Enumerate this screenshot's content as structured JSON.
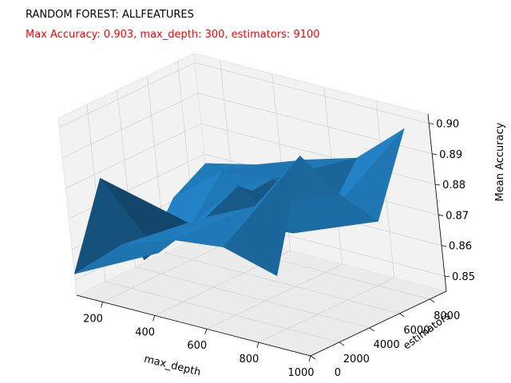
{
  "chart_data": {
    "type": "surface3d",
    "title": "RANDOM FOREST: ALLFEATURES",
    "subtitle": "Max Accuracy: 0.903, max_depth: 300, estimators: 9100",
    "subtitle_color": "#ff0000",
    "surface_color": "#1f77b4",
    "xlabel": "max_depth",
    "ylabel": "estimators",
    "zlabel": "Mean Accuracy",
    "x_ticks": [
      "200",
      "400",
      "600",
      "800",
      "1000"
    ],
    "y_ticks": [
      "0",
      "2000",
      "4000",
      "6000",
      "8000"
    ],
    "z_ticks": [
      "0.85",
      "0.86",
      "0.87",
      "0.88",
      "0.89",
      "0.90"
    ],
    "xlim": [
      100,
      1000
    ],
    "ylim": [
      100,
      9100
    ],
    "zlim": [
      0.845,
      0.903
    ],
    "grid": true,
    "x": [
      100,
      300,
      500,
      700,
      900
    ],
    "y": [
      100,
      2350,
      4600,
      6850,
      9100
    ],
    "z": [
      [
        0.852,
        0.866,
        0.872,
        0.874,
        0.869
      ],
      [
        0.878,
        0.858,
        0.874,
        0.882,
        0.903
      ],
      [
        0.846,
        0.862,
        0.879,
        0.868,
        0.885
      ],
      [
        0.861,
        0.874,
        0.876,
        0.868,
        0.871
      ],
      [
        0.867,
        0.871,
        0.877,
        0.882,
        0.896
      ]
    ]
  }
}
